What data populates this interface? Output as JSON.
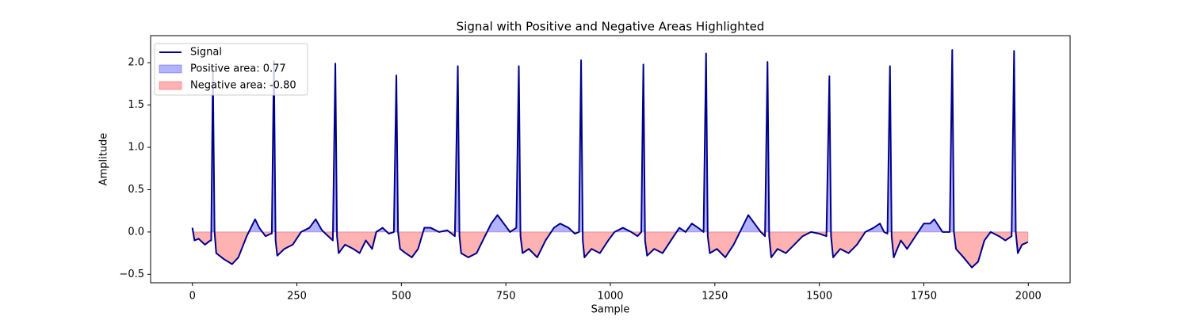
{
  "chart_data": {
    "type": "line",
    "title": "Signal with Positive and Negative Areas Highlighted",
    "xlabel": "Sample",
    "ylabel": "Amplitude",
    "x": [
      0,
      5,
      15,
      30,
      43,
      45,
      49,
      53,
      57,
      75,
      95,
      110,
      130,
      150,
      160,
      175,
      188,
      190,
      195,
      199,
      203,
      220,
      240,
      260,
      280,
      295,
      310,
      325,
      336,
      342,
      346,
      350,
      365,
      385,
      400,
      415,
      430,
      440,
      455,
      470,
      482,
      488,
      492,
      497,
      510,
      525,
      540,
      555,
      570,
      590,
      610,
      628,
      635,
      639,
      643,
      660,
      680,
      700,
      715,
      730,
      745,
      760,
      775,
      781,
      785,
      790,
      805,
      825,
      845,
      865,
      880,
      900,
      915,
      925,
      930,
      934,
      938,
      955,
      975,
      995,
      1010,
      1030,
      1050,
      1065,
      1074,
      1079,
      1083,
      1088,
      1105,
      1125,
      1145,
      1165,
      1180,
      1195,
      1210,
      1223,
      1229,
      1233,
      1238,
      1255,
      1275,
      1295,
      1315,
      1330,
      1345,
      1360,
      1370,
      1376,
      1380,
      1385,
      1400,
      1420,
      1440,
      1460,
      1480,
      1500,
      1517,
      1524,
      1528,
      1533,
      1550,
      1570,
      1590,
      1610,
      1630,
      1645,
      1655,
      1663,
      1669,
      1673,
      1678,
      1695,
      1710,
      1730,
      1750,
      1765,
      1775,
      1795,
      1812,
      1818,
      1822,
      1827,
      1845,
      1865,
      1880,
      1895,
      1910,
      1930,
      1945,
      1960,
      1966,
      1970,
      1975,
      1985,
      1999
    ],
    "series": [
      {
        "name": "Signal",
        "color": "#00008b",
        "values": [
          0.05,
          -0.1,
          -0.08,
          -0.15,
          -0.1,
          -0.1,
          1.9,
          0.0,
          -0.25,
          -0.32,
          -0.38,
          -0.3,
          -0.05,
          0.15,
          0.05,
          -0.05,
          -0.02,
          -0.02,
          2.02,
          -0.1,
          -0.28,
          -0.2,
          -0.15,
          0.0,
          0.05,
          0.15,
          0.02,
          -0.05,
          -0.1,
          1.99,
          -0.05,
          -0.25,
          -0.15,
          -0.2,
          -0.25,
          -0.1,
          -0.2,
          0.0,
          0.05,
          -0.02,
          0.0,
          1.85,
          0.0,
          -0.2,
          -0.25,
          -0.3,
          -0.2,
          0.05,
          0.05,
          0.0,
          0.02,
          -0.05,
          1.96,
          -0.05,
          -0.25,
          -0.3,
          -0.25,
          -0.05,
          0.1,
          0.2,
          0.1,
          0.0,
          0.05,
          1.96,
          -0.05,
          -0.25,
          -0.2,
          -0.3,
          -0.1,
          0.05,
          0.1,
          0.05,
          -0.02,
          0.0,
          2.03,
          -0.1,
          -0.3,
          -0.2,
          -0.25,
          -0.1,
          0.0,
          0.05,
          0.0,
          -0.05,
          0.0,
          1.98,
          -0.1,
          -0.28,
          -0.2,
          -0.25,
          -0.1,
          0.05,
          0.0,
          0.1,
          0.05,
          0.0,
          2.11,
          -0.05,
          -0.25,
          -0.2,
          -0.3,
          -0.15,
          0.05,
          0.2,
          0.1,
          0.0,
          -0.05,
          2.01,
          -0.05,
          -0.3,
          -0.2,
          -0.25,
          -0.15,
          -0.05,
          0.0,
          -0.02,
          -0.05,
          1.84,
          -0.05,
          -0.3,
          -0.2,
          -0.25,
          -0.15,
          0.0,
          0.05,
          0.1,
          0.0,
          -0.02,
          1.96,
          -0.05,
          -0.3,
          -0.1,
          -0.2,
          -0.05,
          0.1,
          0.1,
          0.15,
          0.0,
          0.0,
          2.15,
          0.0,
          -0.2,
          -0.3,
          -0.42,
          -0.35,
          -0.1,
          0.0,
          -0.05,
          -0.1,
          -0.05,
          2.14,
          0.0,
          -0.25,
          -0.15,
          -0.12
        ]
      }
    ],
    "areas": [
      {
        "name": "Positive area: 0.77",
        "color": "#0000ff",
        "side": "positive"
      },
      {
        "name": "Negative area: -0.80",
        "color": "#ff0000",
        "side": "negative"
      }
    ],
    "xlim": [
      -100,
      2100
    ],
    "ylim": [
      -0.6,
      2.32
    ],
    "xticks": [
      0,
      250,
      500,
      750,
      1000,
      1250,
      1500,
      1750,
      2000
    ],
    "yticks": [
      {
        "value": -0.5,
        "label": "−0.5"
      },
      {
        "value": 0,
        "label": "0.0"
      },
      {
        "value": 0.5,
        "label": "0.5"
      },
      {
        "value": 1,
        "label": "1.0"
      },
      {
        "value": 1.5,
        "label": "1.5"
      },
      {
        "value": 2,
        "label": "2.0"
      }
    ],
    "legend": "upper left"
  }
}
